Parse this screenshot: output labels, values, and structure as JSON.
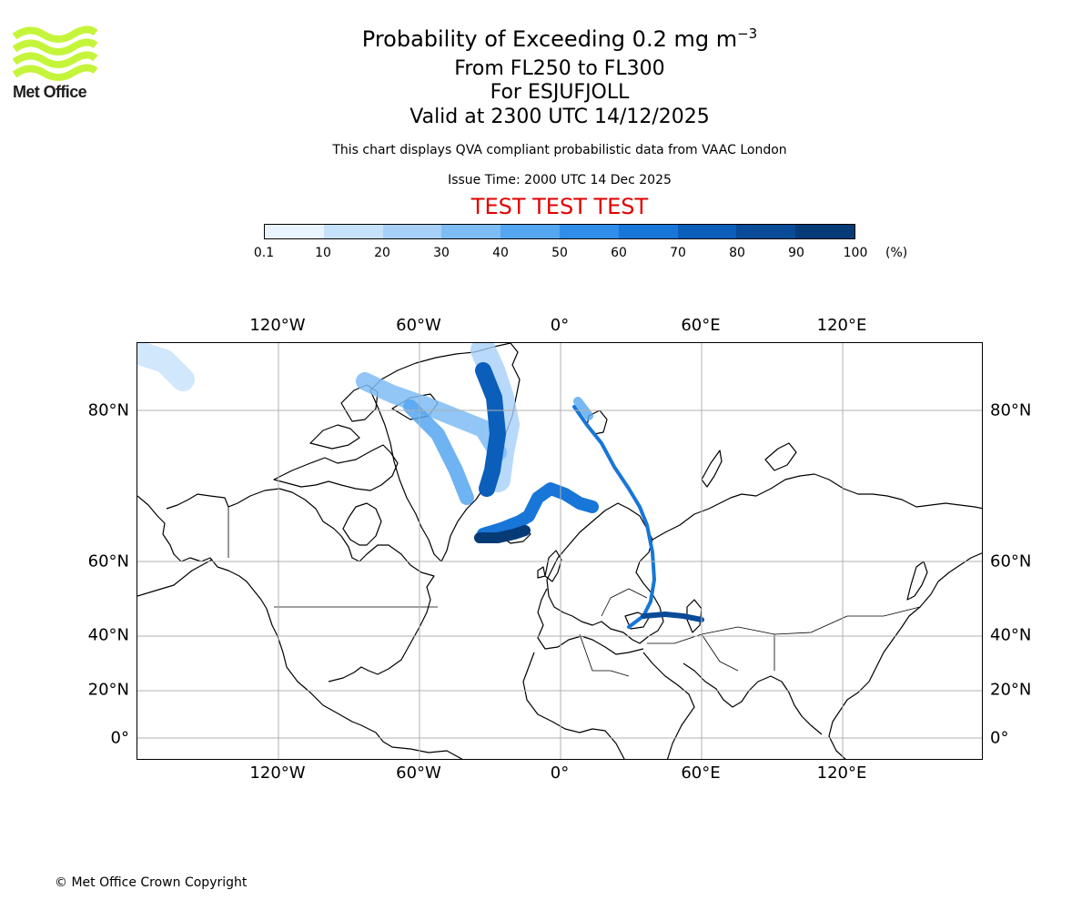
{
  "logo": {
    "text": "Met Office",
    "color": "#c5f53a"
  },
  "title": {
    "main": "Probability of Exceeding 0.2 mg m",
    "superscript": "−3",
    "levels": "From FL250 to FL300",
    "volcano": "For ESJUFJOLL",
    "valid": "Valid at 2300 UTC 14/12/2025"
  },
  "subtitle": "This chart displays QVA compliant probabilistic data from VAAC London",
  "issue_time": "Issue Time: 2000 UTC 14 Dec 2025",
  "test_banner": "TEST TEST TEST",
  "colorbar": {
    "ticks": [
      "0.1",
      "10",
      "20",
      "30",
      "40",
      "50",
      "60",
      "70",
      "80",
      "90",
      "100"
    ],
    "unit": "(%)",
    "colors": [
      "#e9f4fe",
      "#c6e1fa",
      "#a6d0f7",
      "#7ebcf4",
      "#55a6f0",
      "#2e8ee9",
      "#1776d8",
      "#0b5fba",
      "#094b97",
      "#073b78"
    ]
  },
  "map": {
    "lon_labels": [
      "120°W",
      "60°W",
      "0°",
      "60°E",
      "120°E"
    ],
    "lat_labels": [
      "80°N",
      "60°N",
      "40°N",
      "20°N",
      "0°"
    ]
  },
  "copyright": "© Met Office Crown Copyright"
}
